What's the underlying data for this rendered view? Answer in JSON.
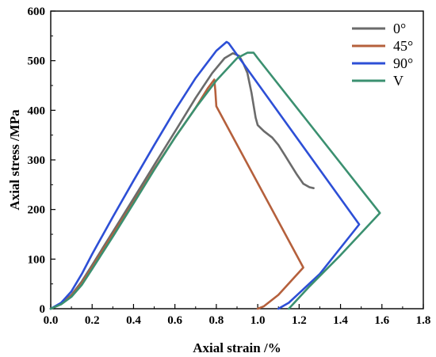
{
  "chart_data": {
    "type": "line",
    "title": "",
    "xlabel": "Axial strain /%",
    "ylabel": "Axial stress /MPa",
    "xlim": [
      0.0,
      1.8
    ],
    "ylim": [
      0,
      600
    ],
    "xticks": [
      "0.0",
      "0.2",
      "0.4",
      "0.6",
      "0.8",
      "1.0",
      "1.2",
      "1.4",
      "1.6",
      "1.8"
    ],
    "yticks": [
      "0",
      "100",
      "200",
      "300",
      "400",
      "500",
      "600"
    ],
    "grid": false,
    "legend_position": "top-right",
    "series": [
      {
        "name": "0°",
        "color": "#6b6b6b",
        "points": [
          [
            0.0,
            0
          ],
          [
            0.05,
            10
          ],
          [
            0.1,
            28
          ],
          [
            0.15,
            55
          ],
          [
            0.2,
            88
          ],
          [
            0.3,
            155
          ],
          [
            0.4,
            222
          ],
          [
            0.5,
            290
          ],
          [
            0.6,
            357
          ],
          [
            0.7,
            425
          ],
          [
            0.78,
            475
          ],
          [
            0.84,
            505
          ],
          [
            0.88,
            515
          ],
          [
            0.91,
            510
          ],
          [
            0.93,
            495
          ],
          [
            0.95,
            475
          ],
          [
            0.96,
            455
          ],
          [
            0.97,
            435
          ],
          [
            0.98,
            410
          ],
          [
            0.99,
            385
          ],
          [
            1.0,
            370
          ],
          [
            1.03,
            358
          ],
          [
            1.07,
            345
          ],
          [
            1.1,
            330
          ],
          [
            1.13,
            310
          ],
          [
            1.16,
            290
          ],
          [
            1.19,
            270
          ],
          [
            1.22,
            252
          ],
          [
            1.25,
            245
          ],
          [
            1.27,
            243
          ]
        ]
      },
      {
        "name": "45°",
        "color": "#b5603c",
        "points": [
          [
            0.0,
            0
          ],
          [
            0.05,
            10
          ],
          [
            0.1,
            26
          ],
          [
            0.15,
            52
          ],
          [
            0.2,
            84
          ],
          [
            0.3,
            150
          ],
          [
            0.4,
            215
          ],
          [
            0.5,
            282
          ],
          [
            0.6,
            345
          ],
          [
            0.7,
            405
          ],
          [
            0.76,
            445
          ],
          [
            0.79,
            462
          ],
          [
            0.795,
            440
          ],
          [
            0.8,
            408
          ],
          [
            1.22,
            83
          ],
          [
            1.1,
            28
          ],
          [
            1.03,
            5
          ],
          [
            1.0,
            0
          ]
        ]
      },
      {
        "name": "90°",
        "color": "#2d4fd6",
        "points": [
          [
            0.0,
            0
          ],
          [
            0.05,
            12
          ],
          [
            0.1,
            35
          ],
          [
            0.15,
            70
          ],
          [
            0.2,
            110
          ],
          [
            0.3,
            185
          ],
          [
            0.4,
            258
          ],
          [
            0.5,
            330
          ],
          [
            0.6,
            400
          ],
          [
            0.7,
            465
          ],
          [
            0.8,
            520
          ],
          [
            0.85,
            538
          ],
          [
            0.86,
            535
          ],
          [
            1.49,
            170
          ],
          [
            1.3,
            70
          ],
          [
            1.15,
            12
          ],
          [
            1.1,
            0
          ]
        ]
      },
      {
        "name": "V",
        "color": "#3b9070",
        "points": [
          [
            0.0,
            0
          ],
          [
            0.05,
            9
          ],
          [
            0.1,
            24
          ],
          [
            0.15,
            48
          ],
          [
            0.2,
            80
          ],
          [
            0.3,
            145
          ],
          [
            0.4,
            212
          ],
          [
            0.5,
            280
          ],
          [
            0.6,
            345
          ],
          [
            0.7,
            405
          ],
          [
            0.8,
            460
          ],
          [
            0.9,
            505
          ],
          [
            0.95,
            516
          ],
          [
            0.98,
            516
          ],
          [
            1.0,
            505
          ],
          [
            1.59,
            193
          ],
          [
            1.4,
            108
          ],
          [
            1.25,
            45
          ],
          [
            1.15,
            0
          ]
        ]
      }
    ]
  }
}
